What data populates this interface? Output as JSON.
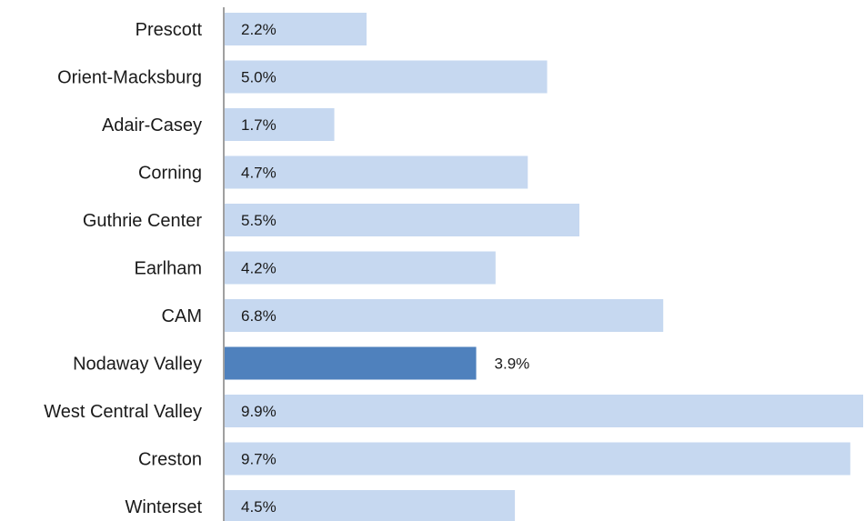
{
  "chart_data": {
    "type": "bar",
    "orientation": "horizontal",
    "categories": [
      "Prescott",
      "Orient-Macksburg",
      "Adair-Casey",
      "Corning",
      "Guthrie Center",
      "Earlham",
      "CAM",
      "Nodaway Valley",
      "West Central Valley",
      "Creston",
      "Winterset"
    ],
    "values": [
      2.2,
      5.0,
      1.7,
      4.7,
      5.5,
      4.2,
      6.8,
      3.9,
      9.9,
      9.7,
      4.5
    ],
    "value_labels": [
      "2.2%",
      "5.0%",
      "1.7%",
      "4.7%",
      "5.5%",
      "4.2%",
      "6.8%",
      "3.9%",
      "9.9%",
      "9.7%",
      "4.5%"
    ],
    "highlight": "Nodaway Valley",
    "title": "",
    "xlabel": "",
    "ylabel": "",
    "xlim": [
      0,
      9.9
    ],
    "grid": false,
    "legend": "none",
    "colors": {
      "bar": "#c6d8f0",
      "highlight": "#4f81bd",
      "axis": "#808080"
    }
  }
}
